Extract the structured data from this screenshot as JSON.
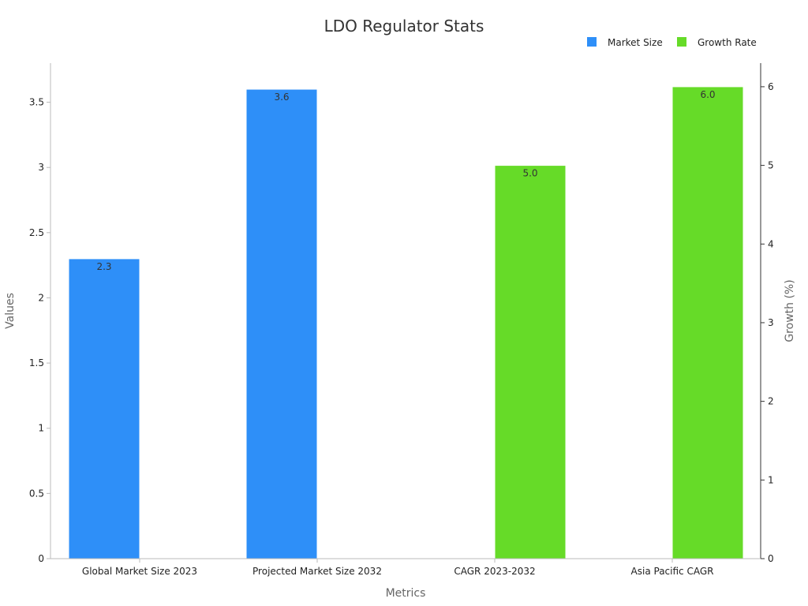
{
  "chart_data": {
    "type": "bar",
    "title": "LDO Regulator Stats",
    "xlabel": "Metrics",
    "ylabel": "Values",
    "y2label": "Growth (%)",
    "categories": [
      "Global Market Size 2023",
      "Projected Market Size 2032",
      "CAGR 2023-2032",
      "Asia Pacific CAGR"
    ],
    "ylim": [
      0,
      3.8
    ],
    "y2lim": [
      0,
      6.3
    ],
    "yticks": [
      "0",
      "0.5",
      "1",
      "1.5",
      "2",
      "2.5",
      "3",
      "3.5"
    ],
    "y2ticks": [
      "0",
      "1",
      "2",
      "3",
      "4",
      "5",
      "6"
    ],
    "legend_position": "top-right",
    "series": [
      {
        "name": "Market Size",
        "axis": "left",
        "color": "#2e8ff8",
        "values": [
          2.3,
          3.6,
          null,
          null
        ],
        "labels": [
          "2.3",
          "3.6",
          "",
          ""
        ]
      },
      {
        "name": "Growth Rate",
        "axis": "right",
        "color": "#66db28",
        "values": [
          null,
          null,
          5.0,
          6.0
        ],
        "labels": [
          "",
          "",
          "5.0",
          "6.0"
        ]
      }
    ]
  }
}
